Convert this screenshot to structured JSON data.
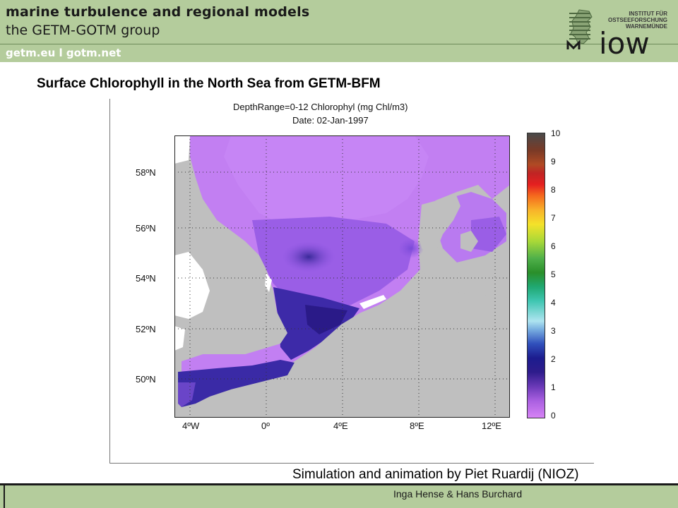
{
  "header": {
    "title": "marine turbulence and regional models",
    "subtitle": "the GETM-GOTM group",
    "links": "getm.eu  l  gotm.net",
    "logo": {
      "institute_line1": "INSTITUT FÜR",
      "institute_line2": "OSTSEEFORSCHUNG",
      "institute_line3": "WARNEMÜNDE",
      "wordmark": "iow"
    }
  },
  "slide": {
    "title": "Surface Chlorophyll in the North Sea from GETM-BFM"
  },
  "figure": {
    "title_line1": "DepthRange=0-12 Chlorophyl (mg Chl/m3)",
    "title_line2": "Date: 02-Jan-1997",
    "lat_labels": [
      "58ºN",
      "56ºN",
      "54ºN",
      "52ºN",
      "50ºN"
    ],
    "lon_labels": [
      "4ºW",
      "0º",
      "4ºE",
      "8ºE",
      "12ºE"
    ],
    "colorbar": {
      "ticks": [
        "10",
        "9",
        "8",
        "7",
        "6",
        "5",
        "4",
        "3",
        "2",
        "1",
        "0"
      ],
      "range": [
        0,
        10
      ]
    },
    "colors": {
      "land": "#bfbfbf",
      "background": "#ffffff",
      "low_chl": "#c882f5",
      "mid_chl": "#8a52e0",
      "high_chl": "#2e1a90"
    }
  },
  "credit": "Simulation and animation by Piet Ruardij (NIOZ)",
  "footer": {
    "authors": "Inga Hense & Hans Burchard"
  }
}
